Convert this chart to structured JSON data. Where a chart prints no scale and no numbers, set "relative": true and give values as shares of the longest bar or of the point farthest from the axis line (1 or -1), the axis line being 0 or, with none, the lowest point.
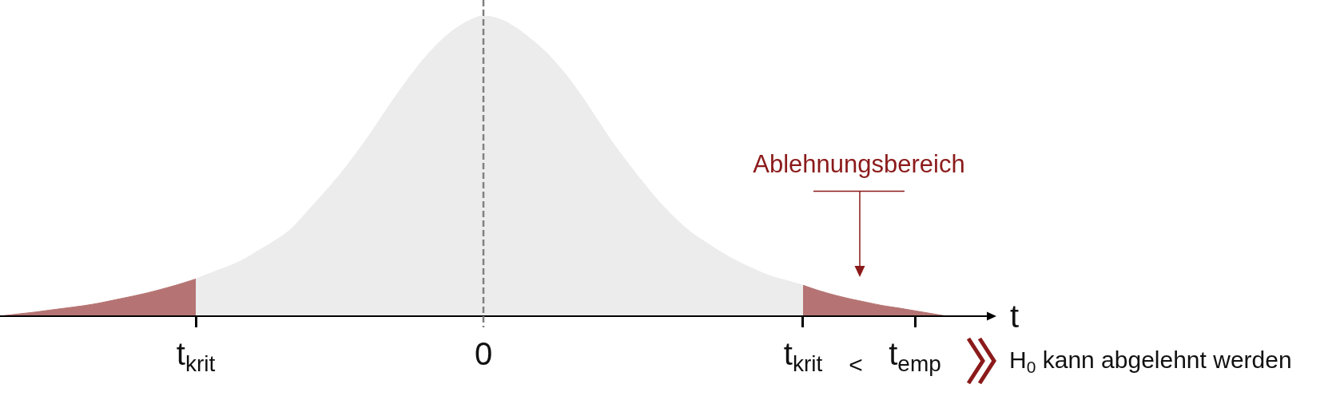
{
  "chart_data": {
    "type": "area",
    "relative": true,
    "xlabel": "t",
    "categories": [
      null,
      null,
      null,
      null,
      null,
      null,
      null,
      null,
      null,
      null,
      null,
      null,
      "t$_{krit}$",
      null,
      null,
      null,
      null,
      null,
      null,
      null,
      null,
      null,
      null,
      null,
      null,
      null,
      null,
      null,
      null,
      null,
      "0",
      null,
      null,
      null,
      null,
      null,
      null,
      null,
      null,
      null,
      null,
      null,
      null,
      null,
      null,
      null,
      null,
      null,
      null,
      null,
      "t$_{krit}$",
      null,
      null,
      null,
      null,
      null,
      null,
      "t$_{emp}$",
      null,
      null,
      null,
      null,
      null
    ],
    "series": [
      {
        "color": "#b57473",
        "values": [
          0.002,
          0.008,
          0.014,
          0.021,
          0.028,
          0.035,
          0.044,
          0.055,
          0.066,
          0.078,
          0.092,
          0.107,
          0.124,
          null,
          null,
          null,
          null,
          null,
          null,
          null,
          null,
          null,
          null,
          null,
          null,
          null,
          null,
          null,
          null,
          null,
          null,
          null,
          null,
          null,
          null,
          null,
          null,
          null,
          null,
          null,
          null,
          null,
          null,
          null,
          null,
          null,
          null,
          null,
          null,
          null,
          null,
          null,
          null,
          null,
          null,
          null,
          null,
          null,
          null,
          null,
          null,
          null,
          null
        ]
      },
      {
        "color": "#ececec",
        "values": [
          null,
          null,
          null,
          null,
          null,
          null,
          null,
          null,
          null,
          null,
          null,
          null,
          0.124,
          0.145,
          0.165,
          0.189,
          0.221,
          0.253,
          0.292,
          0.35,
          0.409,
          0.471,
          0.54,
          0.614,
          0.694,
          0.77,
          0.84,
          0.9,
          0.948,
          0.982,
          1,
          0.99,
          0.962,
          0.922,
          0.875,
          0.815,
          0.745,
          0.665,
          0.585,
          0.513,
          0.445,
          0.381,
          0.326,
          0.279,
          0.243,
          0.209,
          0.18,
          0.155,
          0.133,
          0.118,
          0.103,
          null,
          null,
          null,
          null,
          null,
          null,
          null,
          null,
          null,
          null,
          null,
          null
        ]
      },
      {
        "color": "#b57473",
        "values": [
          null,
          null,
          null,
          null,
          null,
          null,
          null,
          null,
          null,
          null,
          null,
          null,
          null,
          null,
          null,
          null,
          null,
          null,
          null,
          null,
          null,
          null,
          null,
          null,
          null,
          null,
          null,
          null,
          null,
          null,
          null,
          null,
          null,
          null,
          null,
          null,
          null,
          null,
          null,
          null,
          null,
          null,
          null,
          null,
          null,
          null,
          null,
          null,
          null,
          null,
          0.103,
          0.085,
          0.07,
          0.057,
          0.046,
          0.035,
          0.027,
          0.018,
          0.009,
          0,
          null,
          null,
          null
        ]
      }
    ],
    "ref_lines": [
      {
        "axis": "x",
        "value": "0",
        "color": "#808080",
        "line_style": "dashed"
      }
    ],
    "annotations": [
      "Ablehnungsbereich",
      "<",
      "H$_{0}$ kann abgelehnt werden"
    ]
  }
}
